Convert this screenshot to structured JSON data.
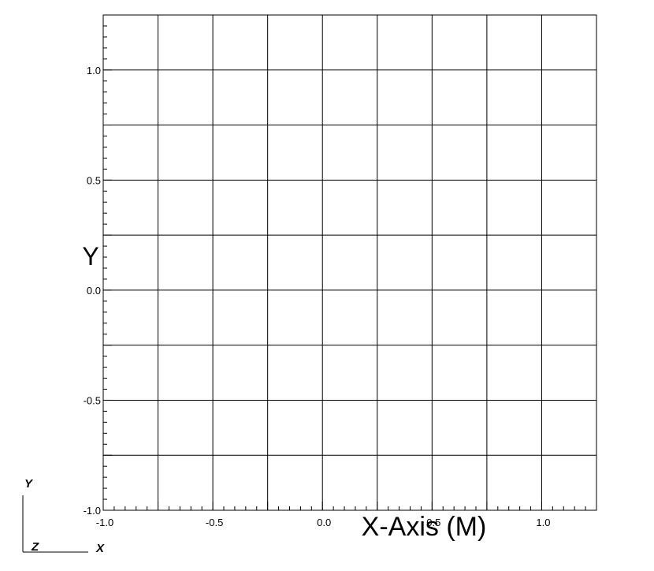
{
  "chart_data": {
    "type": "line",
    "series": [],
    "xlabel": "X-Axis (M)",
    "ylabel": "Y",
    "xlim": [
      -1.0,
      1.25
    ],
    "ylim": [
      -1.0,
      1.25
    ],
    "x_ticks": [
      -1.0,
      -0.5,
      0.0,
      0.5,
      1.0
    ],
    "x_tick_labels": [
      "-1.0",
      "-0.5",
      "0.0",
      "0.5",
      "1.0"
    ],
    "y_ticks": [
      -1.0,
      -0.5,
      0.0,
      0.5,
      1.0
    ],
    "y_tick_labels": [
      "-1.0",
      "-0.5",
      "0.0",
      "0.5",
      "1.0"
    ],
    "grid_step": 0.25,
    "minor_tick_step": 0.05,
    "grid": true
  },
  "axis_triad": {
    "x_label": "X",
    "y_label": "Y",
    "z_label": "Z"
  }
}
